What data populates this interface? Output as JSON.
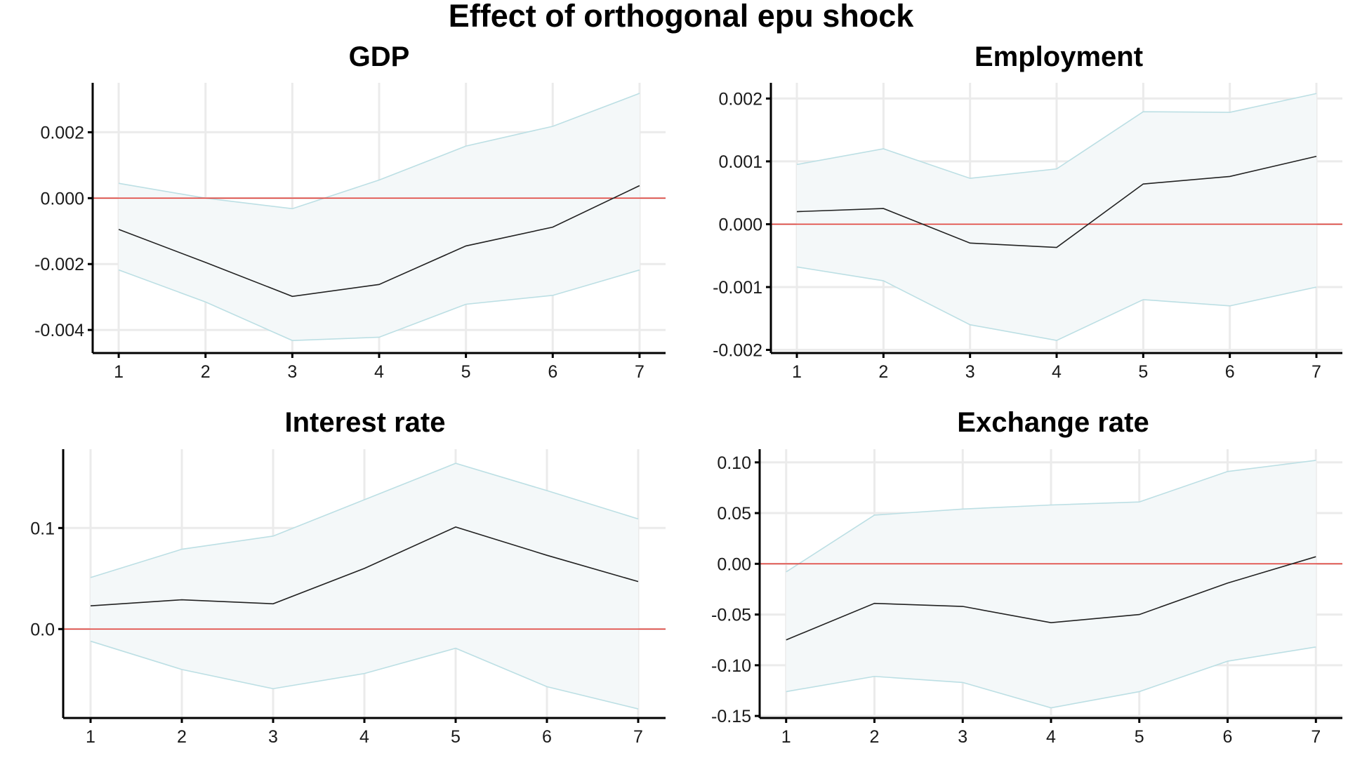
{
  "figure": {
    "title": "Effect of orthogonal epu shock"
  },
  "colors": {
    "irf": "#222222",
    "band_fill": "#f4f8f9",
    "band_edge": "#bcdfe4",
    "zero_line": "#e0413a",
    "grid": "#ebebeb"
  },
  "chart_data": [
    {
      "id": "gdp",
      "type": "line",
      "title": "GDP",
      "x": [
        1,
        2,
        3,
        4,
        5,
        6,
        7
      ],
      "x_ticks": [
        "1",
        "2",
        "3",
        "4",
        "5",
        "6",
        "7"
      ],
      "xlim": [
        0.7,
        7.3
      ],
      "ylim": [
        -0.0047,
        0.0035
      ],
      "y_ticks": [
        0.002,
        0.0,
        -0.002,
        -0.004
      ],
      "y_tick_labels": [
        "0.002",
        "0.000",
        "-0.002",
        "-0.004"
      ],
      "zero_line": 0,
      "series": [
        {
          "values": [
            -0.00095,
            -0.00195,
            -0.00298,
            -0.00262,
            -0.00145,
            -0.00088,
            0.00038
          ]
        }
      ],
      "band": {
        "upper": [
          0.00045,
          0.0,
          -0.00032,
          0.00055,
          0.00158,
          0.00218,
          0.00318
        ],
        "lower": [
          -0.00218,
          -0.00315,
          -0.00432,
          -0.00422,
          -0.00322,
          -0.00295,
          -0.00218
        ]
      },
      "grid": true
    },
    {
      "id": "employment",
      "type": "line",
      "title": "Employment",
      "x": [
        1,
        2,
        3,
        4,
        5,
        6,
        7
      ],
      "x_ticks": [
        "1",
        "2",
        "3",
        "4",
        "5",
        "6",
        "7"
      ],
      "xlim": [
        0.7,
        7.3
      ],
      "ylim": [
        -0.00205,
        0.00225
      ],
      "y_ticks": [
        0.002,
        0.001,
        0.0,
        -0.001,
        -0.002
      ],
      "y_tick_labels": [
        "0.002",
        "0.001",
        "0.000",
        "-0.001",
        "-0.002"
      ],
      "zero_line": 0,
      "series": [
        {
          "values": [
            0.0002,
            0.00025,
            -0.0003,
            -0.00037,
            0.00064,
            0.00076,
            0.00108
          ]
        }
      ],
      "band": {
        "upper": [
          0.00095,
          0.0012,
          0.00073,
          0.00088,
          0.00179,
          0.00178,
          0.00208
        ],
        "lower": [
          -0.00068,
          -0.0009,
          -0.0016,
          -0.00185,
          -0.0012,
          -0.0013,
          -0.001
        ]
      },
      "grid": true
    },
    {
      "id": "interest_rate",
      "type": "line",
      "title": "Interest rate",
      "x": [
        1,
        2,
        3,
        4,
        5,
        6,
        7
      ],
      "x_ticks": [
        "1",
        "2",
        "3",
        "4",
        "5",
        "6",
        "7"
      ],
      "xlim": [
        0.7,
        7.3
      ],
      "ylim": [
        -0.088,
        0.178
      ],
      "y_ticks": [
        0.1,
        0.0
      ],
      "y_tick_labels": [
        "0.1",
        "0.0"
      ],
      "zero_line": 0,
      "series": [
        {
          "values": [
            0.023,
            0.029,
            0.025,
            0.06,
            0.101,
            0.073,
            0.047
          ]
        }
      ],
      "band": {
        "upper": [
          0.051,
          0.079,
          0.092,
          0.128,
          0.164,
          0.137,
          0.109
        ],
        "lower": [
          -0.012,
          -0.04,
          -0.059,
          -0.044,
          -0.019,
          -0.057,
          -0.079
        ]
      },
      "grid": true
    },
    {
      "id": "exchange_rate",
      "type": "line",
      "title": "Exchange rate",
      "x": [
        1,
        2,
        3,
        4,
        5,
        6,
        7
      ],
      "x_ticks": [
        "1",
        "2",
        "3",
        "4",
        "5",
        "6",
        "7"
      ],
      "xlim": [
        0.7,
        7.3
      ],
      "ylim": [
        -0.152,
        0.113
      ],
      "y_ticks": [
        0.1,
        0.05,
        0.0,
        -0.05,
        -0.1,
        -0.15
      ],
      "y_tick_labels": [
        "0.10",
        "0.05",
        "0.00",
        "-0.05",
        "-0.10",
        "-0.15"
      ],
      "zero_line": 0,
      "series": [
        {
          "values": [
            -0.075,
            -0.039,
            -0.042,
            -0.058,
            -0.05,
            -0.019,
            0.007
          ]
        }
      ],
      "band": {
        "upper": [
          -0.008,
          0.048,
          0.054,
          0.058,
          0.061,
          0.091,
          0.102
        ],
        "lower": [
          -0.126,
          -0.111,
          -0.117,
          -0.142,
          -0.126,
          -0.096,
          -0.082
        ]
      },
      "grid": true
    }
  ]
}
